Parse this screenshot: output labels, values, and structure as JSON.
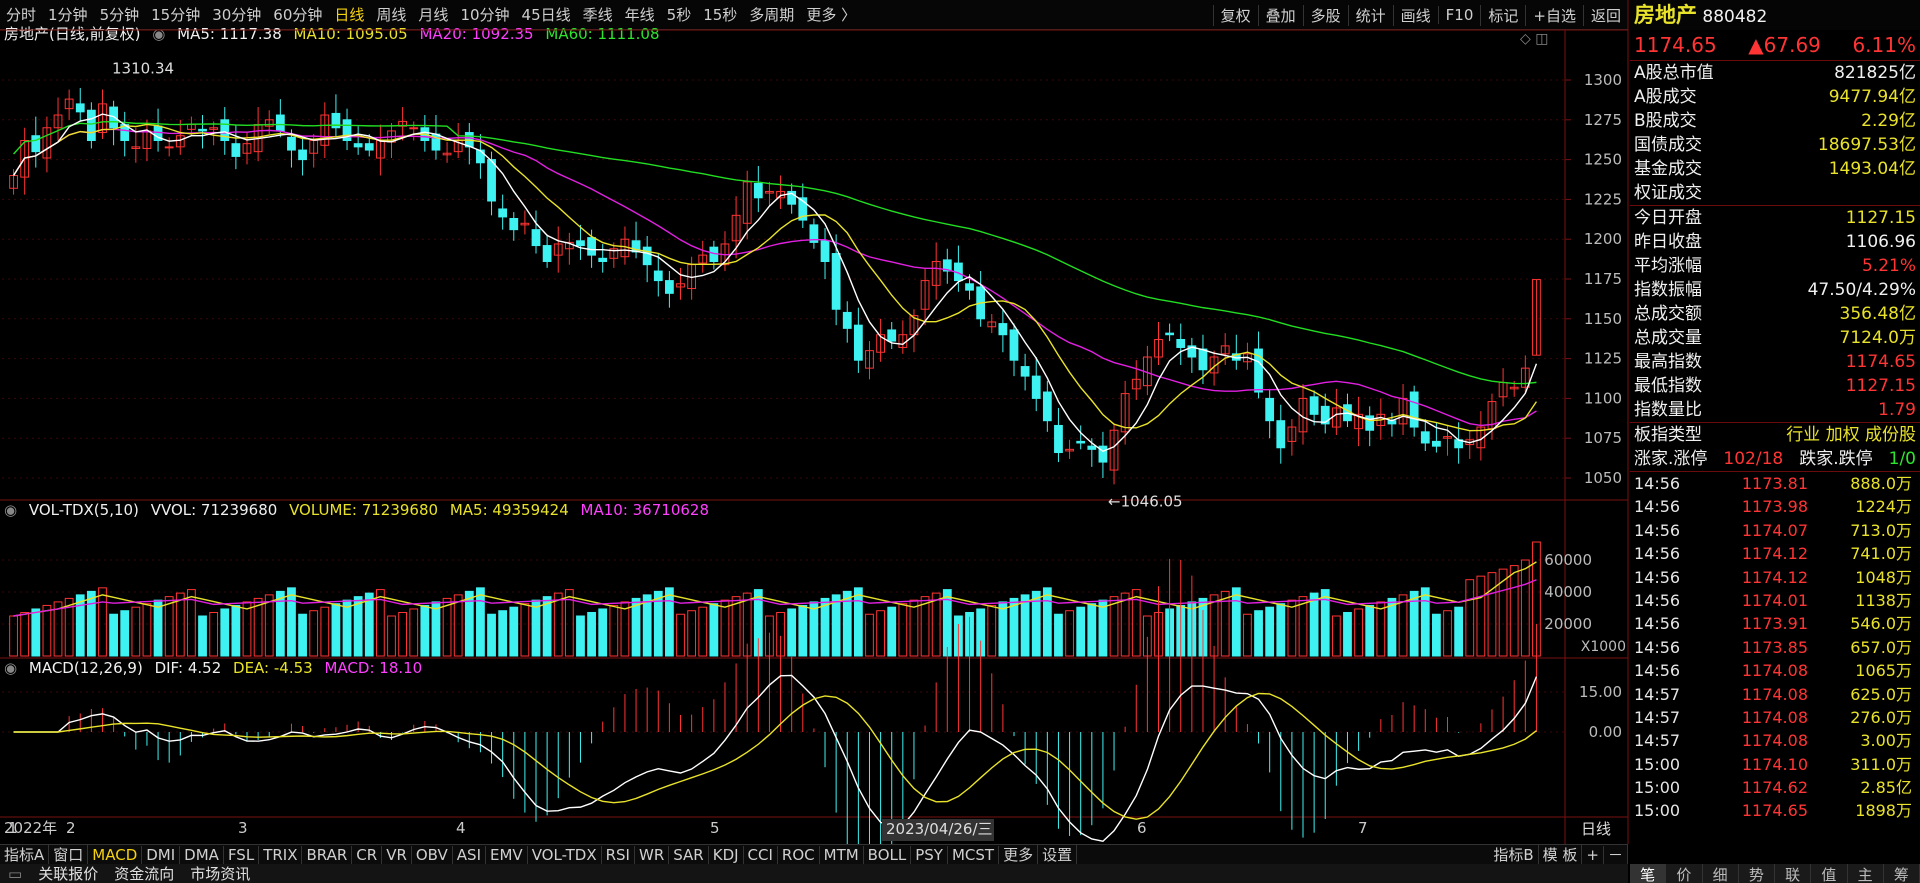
{
  "toolbar": {
    "periods": [
      "分时",
      "1分钟",
      "5分钟",
      "15分钟",
      "30分钟",
      "60分钟",
      "日线",
      "周线",
      "月线",
      "10分钟",
      "45日线",
      "季线",
      "年线",
      "5秒",
      "15秒",
      "多周期",
      "更多 〉"
    ],
    "active": "日线",
    "right_buttons": [
      "复权",
      "叠加",
      "多股",
      "统计",
      "画线",
      "F10",
      "标记",
      "+自选",
      "返回"
    ]
  },
  "main": {
    "title": "房地产(日线,前复权)",
    "ma5": "MA5: 1117.38",
    "ma10": "MA10: 1095.05",
    "ma20": "MA20: 1092.35",
    "ma60": "MA60: 1111.08",
    "high_label": "1310.34",
    "low_label": "←1046.05",
    "yticks": [
      "1300",
      "1275",
      "1250",
      "1225",
      "1200",
      "1175",
      "1150",
      "1125",
      "1100",
      "1075",
      "1050"
    ]
  },
  "vol": {
    "title": "VOL-TDX(5,10)",
    "vvol": "VVOL: 71239680",
    "volume": "VOLUME: 71239680",
    "ma5": "MA5: 49359424",
    "ma10": "MA10: 36710628",
    "yticks": [
      "60000",
      "40000",
      "20000"
    ],
    "unit": "X1000"
  },
  "macd": {
    "title": "MACD(12,26,9)",
    "dif": "DIF: 4.52",
    "dea": "DEA: -4.53",
    "macd": "MACD: 18.10",
    "yticks": [
      "15.00",
      "0.00"
    ]
  },
  "xaxis": {
    "labels": [
      "2022年",
      "1",
      "2",
      "3",
      "4",
      "5",
      "6",
      "7"
    ],
    "cursor_date": "2023/04/26/三",
    "period_btn": "日线"
  },
  "bottom_tabs": {
    "items": [
      "指标A",
      "窗口",
      "MACD",
      "DMI",
      "DMA",
      "FSL",
      "TRIX",
      "BRAR",
      "CR",
      "VR",
      "OBV",
      "ASI",
      "EMV",
      "VOL-TDX",
      "RSI",
      "WR",
      "SAR",
      "KDJ",
      "CCI",
      "ROC",
      "MTM",
      "BOLL",
      "PSY",
      "MCST",
      "更多",
      "设置"
    ],
    "active": "MACD",
    "right": [
      "指标B",
      "模 板",
      "+",
      "－"
    ]
  },
  "status": {
    "items": [
      "关联报价",
      "资金流向",
      "市场资讯"
    ],
    "active": "市场资讯"
  },
  "quote": {
    "name": "房地产",
    "code": "880482",
    "price": "1174.65",
    "change": "▲67.69",
    "pct": "6.11%",
    "rows1": [
      [
        "A股总市值",
        "821825亿"
      ],
      [
        "A股成交",
        "9477.94亿"
      ],
      [
        "B股成交",
        "2.29亿"
      ],
      [
        "国债成交",
        "18697.53亿"
      ],
      [
        "基金成交",
        "1493.04亿"
      ],
      [
        "权证成交",
        ""
      ]
    ],
    "rows2": [
      [
        "今日开盘",
        "1127.15"
      ],
      [
        "昨日收盘",
        "1106.96"
      ],
      [
        "平均涨幅",
        "5.21%"
      ],
      [
        "指数振幅",
        "47.50/4.29%"
      ],
      [
        "总成交额",
        "356.48亿"
      ],
      [
        "总成交量",
        "7124.0万"
      ],
      [
        "最高指数",
        "1174.65"
      ],
      [
        "最低指数",
        "1127.15"
      ],
      [
        "指数量比",
        "1.79"
      ]
    ],
    "type_label": "板指类型",
    "type_tags": "行业 加权 成份股",
    "up_label": "涨家.涨停",
    "up_val": "102/18",
    "down_label": "跌家.跌停",
    "down_val": "1/0"
  },
  "ticks": [
    [
      "14:56",
      "1173.81",
      "888.0万"
    ],
    [
      "14:56",
      "1173.98",
      "1224万"
    ],
    [
      "14:56",
      "1174.07",
      "713.0万"
    ],
    [
      "14:56",
      "1174.12",
      "741.0万"
    ],
    [
      "14:56",
      "1174.12",
      "1048万"
    ],
    [
      "14:56",
      "1174.01",
      "1138万"
    ],
    [
      "14:56",
      "1173.91",
      "546.0万"
    ],
    [
      "14:56",
      "1173.85",
      "657.0万"
    ],
    [
      "14:56",
      "1174.08",
      "1065万"
    ],
    [
      "14:57",
      "1174.08",
      "625.0万"
    ],
    [
      "14:57",
      "1174.08",
      "276.0万"
    ],
    [
      "14:57",
      "1174.08",
      "3.00万"
    ],
    [
      "15:00",
      "1174.10",
      "311.0万"
    ],
    [
      "15:00",
      "1174.62",
      "2.85亿"
    ],
    [
      "15:00",
      "1174.65",
      "1898万"
    ]
  ],
  "right_tabs": [
    "笔",
    "价",
    "细",
    "势",
    "联",
    "值",
    "主",
    "筹"
  ],
  "chart_data": {
    "type": "candlestick",
    "closes": [
      1240,
      1262,
      1255,
      1270,
      1278,
      1288,
      1280,
      1262,
      1285,
      1270,
      1262,
      1258,
      1268,
      1262,
      1258,
      1265,
      1272,
      1268,
      1270,
      1262,
      1252,
      1260,
      1272,
      1275,
      1268,
      1256,
      1250,
      1262,
      1278,
      1270,
      1262,
      1258,
      1256,
      1262,
      1268,
      1274,
      1270,
      1262,
      1256,
      1254,
      1262,
      1258,
      1248,
      1224,
      1214,
      1206,
      1210,
      1196,
      1186,
      1197,
      1198,
      1196,
      1190,
      1186,
      1194,
      1200,
      1192,
      1184,
      1174,
      1166,
      1172,
      1184,
      1190,
      1186,
      1197,
      1215,
      1236,
      1226,
      1230,
      1230,
      1222,
      1212,
      1198,
      1186,
      1156,
      1144,
      1124,
      1130,
      1140,
      1136,
      1140,
      1152,
      1174,
      1186,
      1180,
      1174,
      1168,
      1150,
      1148,
      1140,
      1124,
      1114,
      1100,
      1086,
      1066,
      1068,
      1072,
      1068,
      1060,
      1080,
      1103,
      1112,
      1126,
      1137,
      1140,
      1132,
      1126,
      1118,
      1126,
      1133,
      1124,
      1128,
      1104,
      1086,
      1069,
      1082,
      1100,
      1090,
      1084,
      1094,
      1086,
      1090,
      1080,
      1090,
      1084,
      1100,
      1082,
      1072,
      1070,
      1076,
      1069,
      1074,
      1082,
      1098,
      1110,
      1107,
      1119,
      1174.65
    ]
  }
}
